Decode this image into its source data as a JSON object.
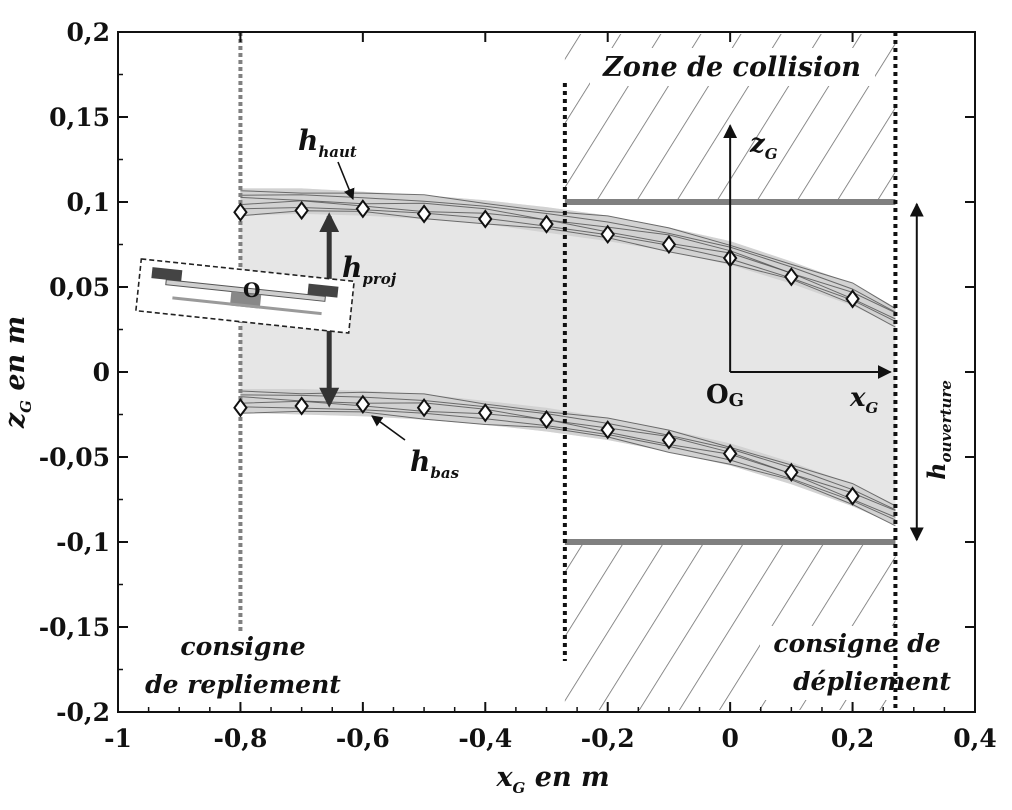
{
  "chart_data": {
    "type": "line",
    "xlabel": {
      "main": "x",
      "sub": "G",
      "rest": " en m"
    },
    "ylabel": {
      "main": "z",
      "sub": "G",
      "rest": " en m"
    },
    "xlim": [
      -1,
      0.4
    ],
    "ylim": [
      -0.2,
      0.2
    ],
    "x_ticks": [
      -1,
      -0.8,
      -0.6,
      -0.4,
      -0.2,
      0,
      0.2,
      0.4
    ],
    "x_tick_labels": [
      "-1",
      "-0,8",
      "-0,6",
      "-0,4",
      "-0,2",
      "0",
      "0,2",
      "0,4"
    ],
    "y_ticks": [
      0.2,
      0.15,
      0.1,
      0.05,
      0,
      -0.05,
      -0.1,
      -0.15,
      -0.2
    ],
    "y_tick_labels": [
      "0,2",
      "0,15",
      "0,1",
      "0,05",
      "0",
      "-0,05",
      "-0,1",
      "-0,15",
      "-0,2"
    ],
    "series": [
      {
        "name": "h_haut",
        "x": [
          -0.8,
          -0.7,
          -0.6,
          -0.5,
          -0.4,
          -0.3,
          -0.2,
          -0.1,
          0,
          0.1,
          0.2
        ],
        "y": [
          0.094,
          0.095,
          0.096,
          0.093,
          0.09,
          0.087,
          0.081,
          0.075,
          0.067,
          0.056,
          0.043
        ]
      },
      {
        "name": "h_bas",
        "x": [
          -0.8,
          -0.7,
          -0.6,
          -0.5,
          -0.4,
          -0.3,
          -0.2,
          -0.1,
          0,
          0.1,
          0.2
        ],
        "y": [
          -0.021,
          -0.02,
          -0.019,
          -0.021,
          -0.024,
          -0.028,
          -0.034,
          -0.04,
          -0.048,
          -0.059,
          -0.073
        ]
      }
    ],
    "envelope": {
      "upper_top": [
        [
          -0.8,
          0.108
        ],
        [
          -0.7,
          0.108
        ],
        [
          -0.6,
          0.106
        ],
        [
          -0.5,
          0.104
        ],
        [
          -0.4,
          0.101
        ],
        [
          -0.3,
          0.097
        ],
        [
          -0.2,
          0.092
        ],
        [
          -0.1,
          0.085
        ],
        [
          0,
          0.077
        ],
        [
          0.1,
          0.065
        ],
        [
          0.2,
          0.052
        ],
        [
          0.27,
          0.038
        ]
      ],
      "upper_bottom": [
        [
          -0.8,
          0.092
        ],
        [
          -0.7,
          0.093
        ],
        [
          -0.6,
          0.092
        ],
        [
          -0.5,
          0.09
        ],
        [
          -0.4,
          0.087
        ],
        [
          -0.3,
          0.082
        ],
        [
          -0.2,
          0.077
        ],
        [
          -0.1,
          0.071
        ],
        [
          0,
          0.063
        ],
        [
          0.1,
          0.052
        ],
        [
          0.2,
          0.039
        ],
        [
          0.27,
          0.027
        ]
      ],
      "lower_top": [
        [
          -0.8,
          -0.01
        ],
        [
          -0.7,
          -0.01
        ],
        [
          -0.6,
          -0.011
        ],
        [
          -0.5,
          -0.013
        ],
        [
          -0.4,
          -0.017
        ],
        [
          -0.3,
          -0.021
        ],
        [
          -0.2,
          -0.027
        ],
        [
          -0.1,
          -0.034
        ],
        [
          0,
          -0.042
        ],
        [
          0.1,
          -0.053
        ],
        [
          0.2,
          -0.066
        ],
        [
          0.27,
          -0.078
        ]
      ],
      "lower_bottom": [
        [
          -0.8,
          -0.024
        ],
        [
          -0.7,
          -0.025
        ],
        [
          -0.6,
          -0.026
        ],
        [
          -0.5,
          -0.028
        ],
        [
          -0.4,
          -0.031
        ],
        [
          -0.3,
          -0.035
        ],
        [
          -0.2,
          -0.04
        ],
        [
          -0.1,
          -0.047
        ],
        [
          0,
          -0.055
        ],
        [
          0.1,
          -0.066
        ],
        [
          0.2,
          -0.079
        ],
        [
          0.27,
          -0.09
        ]
      ]
    },
    "reference_lines": {
      "consigne_repliement_x": -0.8,
      "collision_start_x": -0.27,
      "consigne_depliement_x": 0.27,
      "collision_top_y": 0.1,
      "collision_bottom_y": -0.1
    },
    "axes_origin": {
      "x": 0,
      "y": 0,
      "arrow_x_end": 0.27,
      "arrow_y_end": 0.145
    },
    "h_proj": {
      "x": -0.655,
      "y_top": 0.094,
      "y_bottom": -0.021
    },
    "h_ouverture": {
      "x": 0.3,
      "y_top": 0.1,
      "y_bottom": -0.1
    },
    "annotations": {
      "zone_collision": "Zone de collision",
      "consigne_repliement": [
        "consigne",
        "de repliement"
      ],
      "consigne_depliement": [
        "consigne de",
        "dépliement"
      ],
      "h_haut": {
        "main": "h",
        "sub": "haut"
      },
      "h_bas": {
        "main": "h",
        "sub": "bas"
      },
      "h_proj": {
        "main": "h",
        "sub": "proj"
      },
      "h_ouverture": {
        "main": "h",
        "sub": "ouverture"
      },
      "z_g": {
        "main": "z",
        "sub": "G"
      },
      "x_g": {
        "main": "x",
        "sub": "G"
      },
      "o_g": {
        "main": "O",
        "sub": "G"
      },
      "o": "O"
    },
    "grid": false,
    "colors": {
      "envelope": "#e6e6e6",
      "curve": "#505050",
      "reference": "#808080",
      "hatch": "#707070"
    }
  }
}
